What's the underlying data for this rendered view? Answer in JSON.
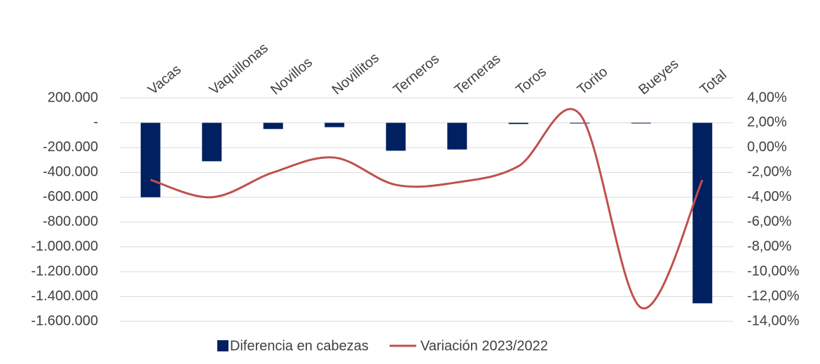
{
  "chart_data": {
    "type": "combo",
    "categories": [
      "Vacas",
      "Vaquillonas",
      "Novillos",
      "Novillitos",
      "Terneros",
      "Terneras",
      "Toros",
      "Torito",
      "Bueyes",
      "Total"
    ],
    "series": [
      {
        "name": "Diferencia en cabezas",
        "type": "bar",
        "color": "#002060",
        "axis": "y",
        "values": [
          -600000,
          -310000,
          -50000,
          -35000,
          -225000,
          -215000,
          -10000,
          -3000,
          -5000,
          -1455000
        ]
      },
      {
        "name": "Variación 2023/2022",
        "type": "line",
        "color": "#c0504d",
        "axis": "y2",
        "values": [
          -2.6,
          -4.0,
          -2.0,
          -0.8,
          -3.0,
          -2.8,
          -1.5,
          2.7,
          -12.9,
          -2.6
        ]
      }
    ],
    "ylim": [
      -1600000,
      200000
    ],
    "yticks": [
      {
        "value": 200000,
        "label": "200.000"
      },
      {
        "value": 0,
        "label": "-"
      },
      {
        "value": -200000,
        "label": "-200.000"
      },
      {
        "value": -400000,
        "label": "-400.000"
      },
      {
        "value": -600000,
        "label": "-600.000"
      },
      {
        "value": -800000,
        "label": "-800.000"
      },
      {
        "value": -1000000,
        "label": "-1.000.000"
      },
      {
        "value": -1200000,
        "label": "-1.200.000"
      },
      {
        "value": -1400000,
        "label": "-1.400.000"
      },
      {
        "value": -1600000,
        "label": "-1.600.000"
      }
    ],
    "y2lim": [
      -14,
      4
    ],
    "y2ticks": [
      {
        "value": 4,
        "label": "4,00%"
      },
      {
        "value": 2,
        "label": "2,00%"
      },
      {
        "value": 0,
        "label": "0,00%"
      },
      {
        "value": -2,
        "label": "-2,00%"
      },
      {
        "value": -4,
        "label": "-4,00%"
      },
      {
        "value": -6,
        "label": "-6,00%"
      },
      {
        "value": -8,
        "label": "-8,00%"
      },
      {
        "value": -10,
        "label": "-10,00%"
      },
      {
        "value": -12,
        "label": "-12,00%"
      },
      {
        "value": -14,
        "label": "-14,00%"
      }
    ],
    "grid": true,
    "legend": "bottom"
  }
}
